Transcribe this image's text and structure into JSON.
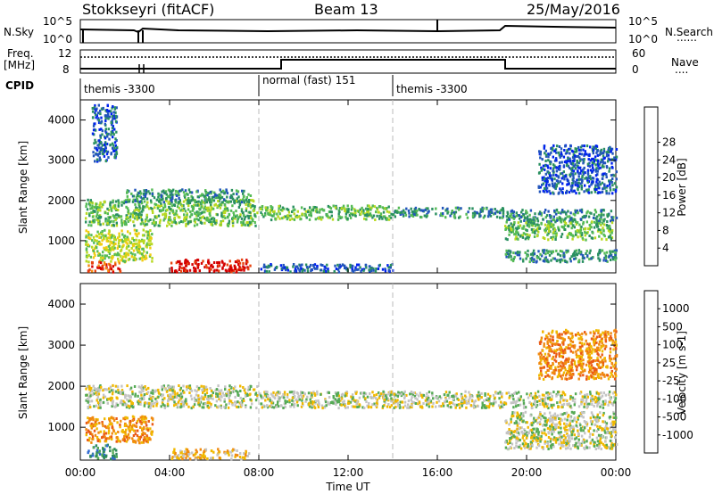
{
  "header": {
    "station": "Stokkseyri (fitACF)",
    "beam": "Beam 13",
    "date": "25/May/2016"
  },
  "top_panels": {
    "nsky_label": "N.Sky",
    "nsearch_label": "N.Search",
    "nsearch_dash": "......",
    "freq_label_line1": "Freq.",
    "freq_label_line2": "[MHz]",
    "nave_label": "Nave",
    "nave_dash": "....",
    "cpid_label": "CPID",
    "left_ticks_noise": [
      "10^5",
      "10^0"
    ],
    "right_ticks_noise": [
      "10^5",
      "10^0"
    ],
    "left_ticks_freq": [
      "12",
      "8"
    ],
    "right_ticks_nave": [
      "60",
      "0"
    ],
    "cpid_segments": [
      {
        "label": "themis -3300",
        "start_h": 0,
        "end_h": 8
      },
      {
        "label": "normal (fast) 151",
        "start_h": 8,
        "end_h": 14
      },
      {
        "label": "themis -3300",
        "start_h": 14,
        "end_h": 24
      }
    ]
  },
  "chart_data": [
    {
      "type": "heatmap",
      "panel": "power",
      "xlabel": "",
      "ylabel": "Slant Range [km]",
      "xlim": [
        0,
        24
      ],
      "ylim": [
        200,
        4500
      ],
      "y_ticks": [
        1000,
        2000,
        3000,
        4000
      ],
      "colorbar_label": "Power [dB]",
      "colorbar_ticks": [
        "4",
        "8",
        "12",
        "16",
        "20",
        "24",
        "28"
      ],
      "colorbar_colors": [
        "#0022ee",
        "#2255bb",
        "#2a9060",
        "#55bb55",
        "#b8d820",
        "#f2cc10",
        "#f58a10",
        "#e84510",
        "#d40000"
      ],
      "echo_bands": [
        {
          "t0": 0.2,
          "t1": 7.9,
          "r0": 1400,
          "r1": 2050,
          "level": 3
        },
        {
          "t0": 2.0,
          "t1": 7.6,
          "r0": 1980,
          "r1": 2300,
          "level": 2
        },
        {
          "t0": 0.2,
          "t1": 3.2,
          "r0": 500,
          "r1": 1300,
          "level": 4
        },
        {
          "t0": 0.3,
          "t1": 1.8,
          "r0": 250,
          "r1": 500,
          "level": 7
        },
        {
          "t0": 4.0,
          "t1": 7.6,
          "r0": 250,
          "r1": 560,
          "level": 8
        },
        {
          "t0": 8.0,
          "t1": 14.0,
          "r0": 1550,
          "r1": 1900,
          "level": 3
        },
        {
          "t0": 14.0,
          "t1": 19.0,
          "r0": 1600,
          "r1": 1850,
          "level": 2
        },
        {
          "t0": 19.0,
          "t1": 24.0,
          "r0": 1500,
          "r1": 1800,
          "level": 2
        },
        {
          "t0": 19.0,
          "t1": 23.8,
          "r0": 1050,
          "r1": 1500,
          "level": 3
        },
        {
          "t0": 19.0,
          "t1": 24.0,
          "r0": 500,
          "r1": 800,
          "level": 2
        },
        {
          "t0": 20.5,
          "t1": 24.0,
          "r0": 2200,
          "r1": 3400,
          "level": 1
        },
        {
          "t0": 0.5,
          "t1": 1.6,
          "r0": 3000,
          "r1": 4400,
          "level": 1
        },
        {
          "t0": 8.0,
          "t1": 14.0,
          "r0": 250,
          "r1": 450,
          "level": 1
        }
      ]
    },
    {
      "type": "heatmap",
      "panel": "velocity",
      "xlabel": "Time UT",
      "ylabel": "Slant Range [km]",
      "xlim": [
        0,
        24
      ],
      "ylim": [
        200,
        4500
      ],
      "x_ticks": [
        "00:00",
        "04:00",
        "08:00",
        "12:00",
        "16:00",
        "20:00",
        "00:00"
      ],
      "y_ticks": [
        1000,
        2000,
        3000,
        4000
      ],
      "colorbar_label": "Velocity [m s-1]",
      "colorbar_ticks": [
        "1000",
        "500",
        "100",
        "25",
        "-25",
        "-100",
        "-500",
        "-1000"
      ],
      "colorbar_colors": [
        "#2233bb",
        "#2f6ad2",
        "#2e8a5a",
        "#55aa55",
        "#c4c4c4",
        "#f0b800",
        "#f08a10",
        "#ea5a15",
        "#e80000"
      ],
      "echo_bands": [
        {
          "t0": 0.2,
          "t1": 7.9,
          "r0": 1500,
          "r1": 2050,
          "level": 4
        },
        {
          "t0": 8.0,
          "t1": 24.0,
          "r0": 1500,
          "r1": 1900,
          "level": 4
        },
        {
          "t0": 0.2,
          "t1": 3.2,
          "r0": 650,
          "r1": 1300,
          "level": 6
        },
        {
          "t0": 0.3,
          "t1": 1.6,
          "r0": 250,
          "r1": 600,
          "level": 2
        },
        {
          "t0": 4.0,
          "t1": 7.6,
          "r0": 250,
          "r1": 500,
          "level": 5
        },
        {
          "t0": 19.0,
          "t1": 24.0,
          "r0": 500,
          "r1": 1400,
          "level": 4
        },
        {
          "t0": 20.5,
          "t1": 24.0,
          "r0": 2200,
          "r1": 3400,
          "level": 6
        }
      ]
    }
  ]
}
